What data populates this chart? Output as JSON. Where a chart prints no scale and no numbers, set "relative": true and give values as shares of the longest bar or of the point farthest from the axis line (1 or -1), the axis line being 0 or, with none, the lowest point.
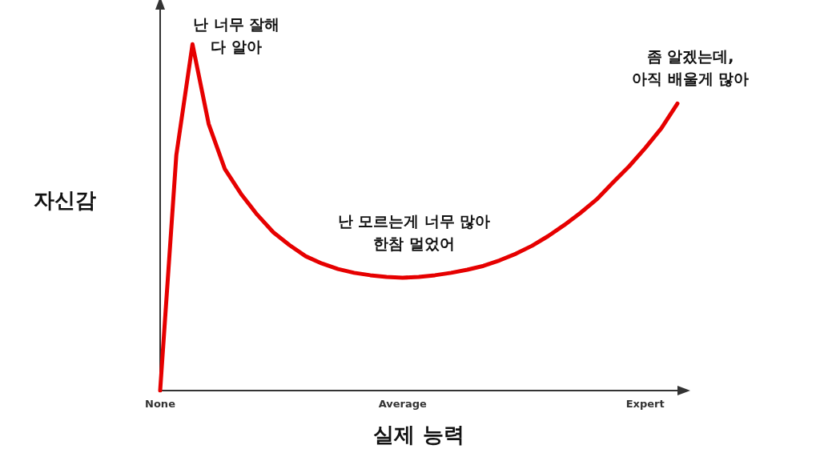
{
  "chart_data": {
    "type": "line",
    "relative": true,
    "xlabel": "실제 능력",
    "ylabel": "자신감",
    "categories": [
      "None",
      null,
      null,
      null,
      null,
      null,
      null,
      null,
      null,
      null,
      null,
      null,
      null,
      null,
      null,
      "Average",
      null,
      null,
      null,
      null,
      null,
      null,
      null,
      null,
      null,
      null,
      null,
      null,
      null,
      null,
      "Expert",
      null,
      null
    ],
    "grid": false,
    "marker": "none",
    "line_style": "solid",
    "series": [
      {
        "color": "#e60000",
        "values": [
          0,
          0.68,
          1,
          0.77,
          0.64,
          0.568,
          0.508,
          0.457,
          0.42,
          0.388,
          0.367,
          0.351,
          0.34,
          0.333,
          0.328,
          0.326,
          0.328,
          0.333,
          0.34,
          0.349,
          0.36,
          0.376,
          0.395,
          0.418,
          0.446,
          0.478,
          0.513,
          0.552,
          0.6,
          0.647,
          0.7,
          0.757,
          0.829
        ]
      }
    ],
    "annotations": [
      "난 너무 잘해\n다 알아",
      "난 모르는게 너무 많아\n한참 멀었어",
      "좀 알겠는데,\n아직 배울게 많아"
    ]
  }
}
